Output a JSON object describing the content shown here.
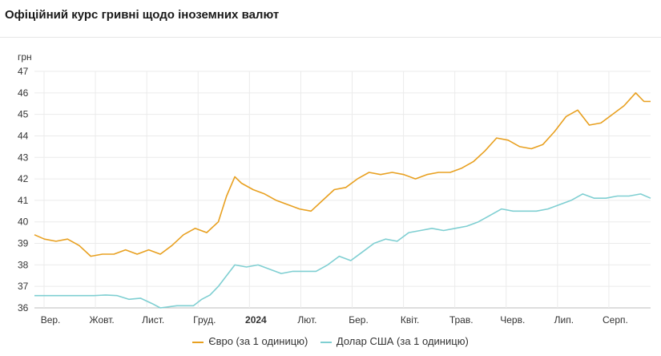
{
  "title": "Офіційний курс гривні щодо іноземних валют",
  "chart_data": {
    "type": "line",
    "ylabel": "грн",
    "ylim": [
      36,
      47
    ],
    "yticks": [
      "36",
      "37",
      "38",
      "39",
      "40",
      "41",
      "42",
      "43",
      "44",
      "45",
      "46",
      "47"
    ],
    "x_tick_labels": [
      "Вер.",
      "Жовт.",
      "Лист.",
      "Груд.",
      "2024",
      "Лют.",
      "Бер.",
      "Квіт.",
      "Трав.",
      "Черв.",
      "Лип.",
      "Серп."
    ],
    "bold_tick": "2024",
    "x_range": [
      "2023-08-26",
      "2024-09-01"
    ],
    "grid": true,
    "legend_position": "bottom",
    "series": [
      {
        "name": "Євро (за 1 одиницю)",
        "color": "#e8a020",
        "points": [
          [
            "2023-08-26",
            39.4
          ],
          [
            "2023-09-01",
            39.2
          ],
          [
            "2023-09-08",
            39.1
          ],
          [
            "2023-09-15",
            39.2
          ],
          [
            "2023-09-22",
            38.9
          ],
          [
            "2023-09-29",
            38.4
          ],
          [
            "2023-10-06",
            38.5
          ],
          [
            "2023-10-13",
            38.5
          ],
          [
            "2023-10-20",
            38.7
          ],
          [
            "2023-10-27",
            38.5
          ],
          [
            "2023-11-03",
            38.7
          ],
          [
            "2023-11-10",
            38.5
          ],
          [
            "2023-11-17",
            38.9
          ],
          [
            "2023-11-24",
            39.4
          ],
          [
            "2023-12-01",
            39.7
          ],
          [
            "2023-12-08",
            39.5
          ],
          [
            "2023-12-15",
            40.0
          ],
          [
            "2023-12-20",
            41.2
          ],
          [
            "2023-12-25",
            42.1
          ],
          [
            "2023-12-29",
            41.8
          ],
          [
            "2024-01-05",
            41.5
          ],
          [
            "2024-01-12",
            41.3
          ],
          [
            "2024-01-19",
            41.0
          ],
          [
            "2024-01-26",
            40.8
          ],
          [
            "2024-02-02",
            40.6
          ],
          [
            "2024-02-09",
            40.5
          ],
          [
            "2024-02-16",
            41.0
          ],
          [
            "2024-02-23",
            41.5
          ],
          [
            "2024-03-01",
            41.6
          ],
          [
            "2024-03-08",
            42.0
          ],
          [
            "2024-03-15",
            42.3
          ],
          [
            "2024-03-22",
            42.2
          ],
          [
            "2024-03-29",
            42.3
          ],
          [
            "2024-04-05",
            42.2
          ],
          [
            "2024-04-12",
            42.0
          ],
          [
            "2024-04-19",
            42.2
          ],
          [
            "2024-04-26",
            42.3
          ],
          [
            "2024-05-03",
            42.3
          ],
          [
            "2024-05-10",
            42.5
          ],
          [
            "2024-05-17",
            42.8
          ],
          [
            "2024-05-24",
            43.3
          ],
          [
            "2024-05-31",
            43.9
          ],
          [
            "2024-06-07",
            43.8
          ],
          [
            "2024-06-14",
            43.5
          ],
          [
            "2024-06-21",
            43.4
          ],
          [
            "2024-06-28",
            43.6
          ],
          [
            "2024-07-05",
            44.2
          ],
          [
            "2024-07-12",
            44.9
          ],
          [
            "2024-07-19",
            45.2
          ],
          [
            "2024-07-26",
            44.5
          ],
          [
            "2024-08-02",
            44.6
          ],
          [
            "2024-08-09",
            45.0
          ],
          [
            "2024-08-16",
            45.4
          ],
          [
            "2024-08-23",
            46.0
          ],
          [
            "2024-08-28",
            45.6
          ],
          [
            "2024-09-01",
            45.6
          ]
        ]
      },
      {
        "name": "Долар США (за 1 одиницю)",
        "color": "#7fcfd2",
        "points": [
          [
            "2023-08-26",
            36.57
          ],
          [
            "2023-09-15",
            36.57
          ],
          [
            "2023-10-01",
            36.57
          ],
          [
            "2023-10-08",
            36.6
          ],
          [
            "2023-10-15",
            36.57
          ],
          [
            "2023-10-22",
            36.4
          ],
          [
            "2023-10-29",
            36.45
          ],
          [
            "2023-11-05",
            36.2
          ],
          [
            "2023-11-10",
            36.0
          ],
          [
            "2023-11-20",
            36.1
          ],
          [
            "2023-11-30",
            36.1
          ],
          [
            "2023-12-05",
            36.4
          ],
          [
            "2023-12-10",
            36.6
          ],
          [
            "2023-12-15",
            37.0
          ],
          [
            "2023-12-20",
            37.5
          ],
          [
            "2023-12-25",
            38.0
          ],
          [
            "2024-01-01",
            37.9
          ],
          [
            "2024-01-08",
            38.0
          ],
          [
            "2024-01-15",
            37.8
          ],
          [
            "2024-01-22",
            37.6
          ],
          [
            "2024-01-29",
            37.7
          ],
          [
            "2024-02-05",
            37.7
          ],
          [
            "2024-02-12",
            37.7
          ],
          [
            "2024-02-19",
            38.0
          ],
          [
            "2024-02-26",
            38.4
          ],
          [
            "2024-03-04",
            38.2
          ],
          [
            "2024-03-11",
            38.6
          ],
          [
            "2024-03-18",
            39.0
          ],
          [
            "2024-03-25",
            39.2
          ],
          [
            "2024-04-01",
            39.1
          ],
          [
            "2024-04-08",
            39.5
          ],
          [
            "2024-04-15",
            39.6
          ],
          [
            "2024-04-22",
            39.7
          ],
          [
            "2024-04-29",
            39.6
          ],
          [
            "2024-05-06",
            39.7
          ],
          [
            "2024-05-13",
            39.8
          ],
          [
            "2024-05-20",
            40.0
          ],
          [
            "2024-05-27",
            40.3
          ],
          [
            "2024-06-03",
            40.6
          ],
          [
            "2024-06-10",
            40.5
          ],
          [
            "2024-06-17",
            40.5
          ],
          [
            "2024-06-24",
            40.5
          ],
          [
            "2024-07-01",
            40.6
          ],
          [
            "2024-07-08",
            40.8
          ],
          [
            "2024-07-15",
            41.0
          ],
          [
            "2024-07-22",
            41.3
          ],
          [
            "2024-07-29",
            41.1
          ],
          [
            "2024-08-05",
            41.1
          ],
          [
            "2024-08-12",
            41.2
          ],
          [
            "2024-08-19",
            41.2
          ],
          [
            "2024-08-26",
            41.3
          ],
          [
            "2024-09-01",
            41.1
          ]
        ]
      }
    ]
  }
}
